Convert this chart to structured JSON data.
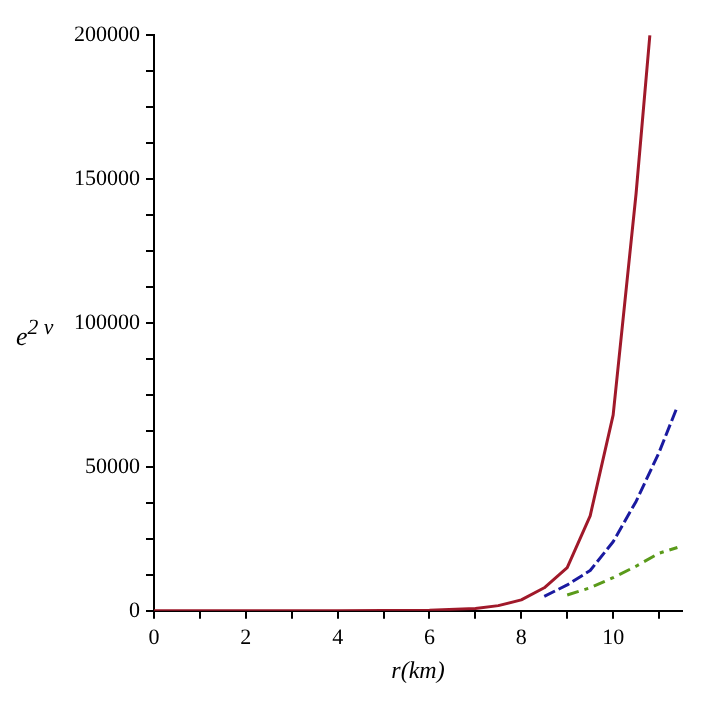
{
  "chart_data": {
    "type": "line",
    "xlabel": "r(km)",
    "ylabel": "e$^{2 ν}$",
    "xlim": [
      0,
      11.5
    ],
    "xticks": [
      0,
      {
        "value": 1,
        "label": null
      },
      2,
      {
        "value": 3,
        "label": null
      },
      4,
      {
        "value": 5,
        "label": null
      },
      6,
      {
        "value": 7,
        "label": null
      },
      8,
      {
        "value": 9,
        "label": null
      },
      10,
      {
        "value": 11,
        "label": null
      }
    ],
    "ylim": [
      0,
      200000
    ],
    "yticks": [
      0,
      {
        "value": 12500,
        "label": null
      },
      {
        "value": 25000,
        "label": null
      },
      {
        "value": 37500,
        "label": null
      },
      50000,
      {
        "value": 62500,
        "label": null
      },
      {
        "value": 75000,
        "label": null
      },
      {
        "value": 87500,
        "label": null
      },
      100000,
      {
        "value": 112500,
        "label": null
      },
      {
        "value": 125000,
        "label": null
      },
      {
        "value": 137500,
        "label": null
      },
      150000,
      {
        "value": 162500,
        "label": null
      },
      {
        "value": 175000,
        "label": null
      },
      {
        "value": 187500,
        "label": null
      },
      200000
    ],
    "grid": false,
    "legend": false,
    "marker": "none",
    "series": [
      {
        "color": "#a0192a",
        "line_style": "solid",
        "x": [
          0,
          2,
          4,
          6,
          7,
          7.5,
          8,
          8.5,
          9,
          9.5,
          10,
          10.5,
          10.8
        ],
        "values": [
          0,
          0,
          0,
          200,
          800,
          1800,
          3800,
          8000,
          15000,
          33000,
          68000,
          145000,
          200000
        ]
      },
      {
        "color": "#1a1aa0",
        "line_style": "dashed",
        "x": [
          8.5,
          9,
          9.5,
          10,
          10.5,
          11,
          11.4
        ],
        "values": [
          5000,
          9000,
          14000,
          24000,
          38000,
          55000,
          71000
        ]
      },
      {
        "color": "#5a9a1a",
        "line_style": "dotted",
        "x": [
          9,
          9.5,
          10,
          10.5,
          11,
          11.4
        ],
        "values": [
          5500,
          8000,
          11500,
          15500,
          20000,
          22000
        ]
      }
    ]
  }
}
